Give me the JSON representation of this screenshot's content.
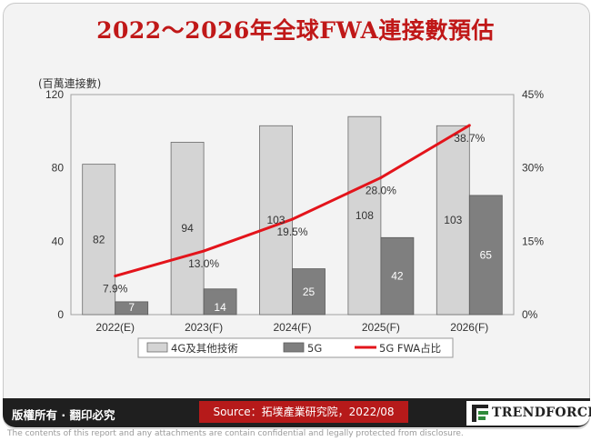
{
  "title": "2022～2026年全球FWA連接數預估",
  "footer": {
    "rights": "版權所有 · 翻印必究",
    "source": "Source：拓墣產業研究院，2022/08",
    "brand": "TRENDFORCE"
  },
  "disclaimer": "The contents of this report and any attachments are contain confidential and legally protected from disclosure.",
  "chart_data": {
    "type": "bar",
    "left_unit_label": "(百萬連接數)",
    "categories": [
      "2022(E)",
      "2023(F)",
      "2024(F)",
      "2025(F)",
      "2026(F)"
    ],
    "series": [
      {
        "name": "4G及其他技術",
        "values": [
          82,
          94,
          103,
          108,
          103
        ],
        "color": "#d4d4d4",
        "axis": "left",
        "kind": "bar"
      },
      {
        "name": "5G",
        "values": [
          7,
          14,
          25,
          42,
          65
        ],
        "color": "#7f7f7f",
        "axis": "left",
        "kind": "bar"
      },
      {
        "name": "5G FWA占比",
        "values": [
          7.9,
          13.0,
          19.5,
          28.0,
          38.7
        ],
        "labels": [
          "7.9%",
          "13.0%",
          "19.5%",
          "28.0%",
          "38.7%"
        ],
        "color": "#e3141b",
        "axis": "right",
        "kind": "line"
      }
    ],
    "ylim_left": [
      0,
      120
    ],
    "yticks_left": [
      "0",
      "40",
      "80",
      "120"
    ],
    "ylim_right": [
      0,
      45
    ],
    "yticks_right": [
      "0%",
      "15%",
      "30%",
      "45%"
    ],
    "grid": false,
    "legend_position": "bottom"
  }
}
